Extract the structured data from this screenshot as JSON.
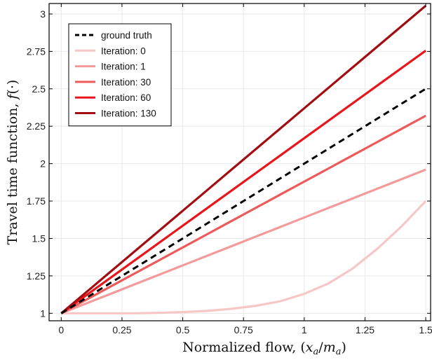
{
  "chart_data": {
    "type": "line",
    "title": "",
    "xlabel": "Normalized flow, (x_a/m_a)",
    "ylabel": "Travel time function, f(·)",
    "xlim": [
      -0.05,
      1.52
    ],
    "ylim": [
      0.95,
      3.07
    ],
    "xticks": [
      0,
      0.25,
      0.5,
      0.75,
      1,
      1.25,
      1.5
    ],
    "xtick_labels": [
      "0",
      "0.25",
      "0.5",
      "0.75",
      "1",
      "1.25",
      "1.5"
    ],
    "yticks": [
      1,
      1.25,
      1.5,
      1.75,
      2,
      2.25,
      2.5,
      2.75,
      3
    ],
    "ytick_labels": [
      "1",
      "1.25",
      "1.5",
      "1.75",
      "2",
      "2.25",
      "2.5",
      "2.75",
      "3"
    ],
    "grid": true,
    "legend_position": "top-left",
    "x": [
      0,
      0.1,
      0.2,
      0.3,
      0.4,
      0.5,
      0.6,
      0.7,
      0.8,
      0.9,
      1.0,
      1.1,
      1.2,
      1.3,
      1.4,
      1.5
    ],
    "series": [
      {
        "name": "ground truth",
        "color": "#000000",
        "dashed": true,
        "values": [
          1.0,
          1.1,
          1.2,
          1.3,
          1.4,
          1.5,
          1.6,
          1.7,
          1.8,
          1.9,
          2.0,
          2.1,
          2.2,
          2.3,
          2.4,
          2.5
        ]
      },
      {
        "name": "Iteration: 0",
        "color": "#f7c6c6",
        "dashed": false,
        "values": [
          1.0,
          1.0,
          1.0,
          1.0,
          1.003,
          1.008,
          1.016,
          1.03,
          1.05,
          1.08,
          1.13,
          1.2,
          1.3,
          1.43,
          1.58,
          1.75
        ]
      },
      {
        "name": "Iteration: 1",
        "color": "#f49a9a",
        "dashed": false,
        "values": [
          1.0,
          1.064,
          1.128,
          1.192,
          1.256,
          1.32,
          1.384,
          1.448,
          1.512,
          1.576,
          1.64,
          1.704,
          1.768,
          1.832,
          1.896,
          1.96
        ]
      },
      {
        "name": "Iteration: 30",
        "color": "#ee5a5a",
        "dashed": false,
        "values": [
          1.0,
          1.088,
          1.176,
          1.264,
          1.352,
          1.44,
          1.528,
          1.616,
          1.704,
          1.792,
          1.88,
          1.968,
          2.056,
          2.144,
          2.232,
          2.32
        ]
      },
      {
        "name": "Iteration: 60",
        "color": "#e8151b",
        "dashed": false,
        "values": [
          1.0,
          1.117,
          1.234,
          1.351,
          1.468,
          1.585,
          1.702,
          1.819,
          1.936,
          2.053,
          2.17,
          2.287,
          2.404,
          2.521,
          2.638,
          2.755
        ]
      },
      {
        "name": "Iteration: 130",
        "color": "#a30d12",
        "dashed": false,
        "values": [
          1.0,
          1.137,
          1.274,
          1.411,
          1.548,
          1.685,
          1.822,
          1.959,
          2.096,
          2.233,
          2.37,
          2.507,
          2.644,
          2.781,
          2.918,
          3.055
        ]
      }
    ]
  }
}
